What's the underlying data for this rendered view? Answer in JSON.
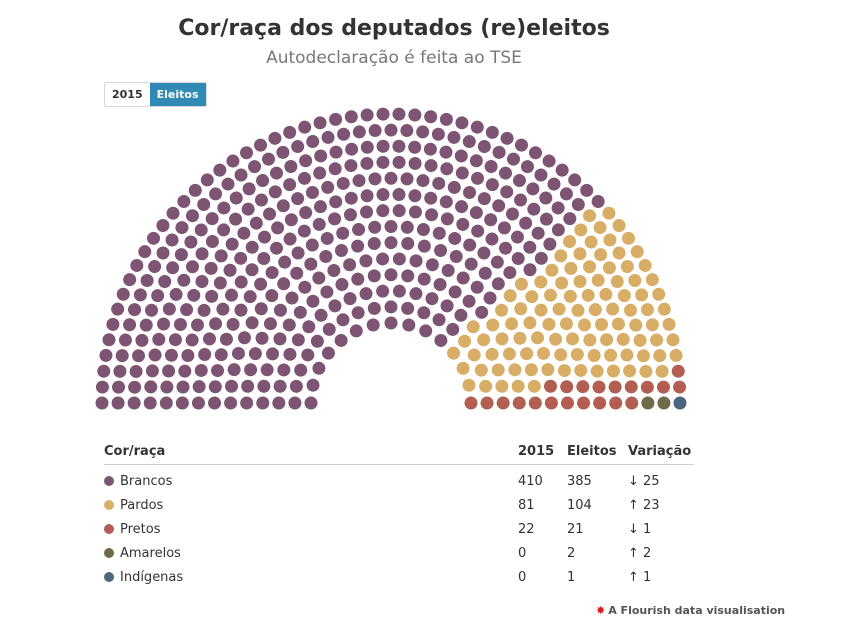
{
  "title": "Cor/raça dos deputados (re)eleitos",
  "subtitle": "Autodeclaração é feita ao TSE",
  "toggle": {
    "option_2015": "2015",
    "option_eleitos": "Eleitos",
    "selected": "Eleitos"
  },
  "table": {
    "headers": {
      "group": "Cor/raça",
      "y2015": "2015",
      "eleitos": "Eleitos",
      "variacao": "Variação"
    },
    "rows": [
      {
        "name": "Brancos",
        "y2015": "410",
        "eleitos": "385",
        "variacao": "↓ 25",
        "direction": "down",
        "color": "#7d5573"
      },
      {
        "name": "Pardos",
        "y2015": "81",
        "eleitos": "104",
        "variacao": "↑ 23",
        "direction": "up",
        "color": "#d8ae66"
      },
      {
        "name": "Pretos",
        "y2015": "22",
        "eleitos": "21",
        "variacao": "↓ 1",
        "direction": "down",
        "color": "#b35e52"
      },
      {
        "name": "Amarelos",
        "y2015": "0",
        "eleitos": "2",
        "variacao": "↑ 2",
        "direction": "up",
        "color": "#6e6c48"
      },
      {
        "name": "Indígenas",
        "y2015": "0",
        "eleitos": "1",
        "variacao": "↑ 1",
        "direction": "up",
        "color": "#4e6581"
      }
    ]
  },
  "chart_data": {
    "type": "parliament",
    "title": "Cor/raça dos deputados (re)eleitos",
    "subtitle": "Autodeclaração é feita ao TSE",
    "total_seats": 513,
    "series": [
      {
        "name": "Brancos",
        "value": 385,
        "color": "#7d5573"
      },
      {
        "name": "Pardos",
        "value": 104,
        "color": "#d8ae66"
      },
      {
        "name": "Pretos",
        "value": 21,
        "color": "#b35e52"
      },
      {
        "name": "Amarelos",
        "value": 2,
        "color": "#6e6c48"
      },
      {
        "name": "Indígenas",
        "value": 1,
        "color": "#4e6581"
      }
    ]
  },
  "credit": {
    "icon": "flourish-star-icon",
    "text": "A Flourish data visualisation"
  }
}
